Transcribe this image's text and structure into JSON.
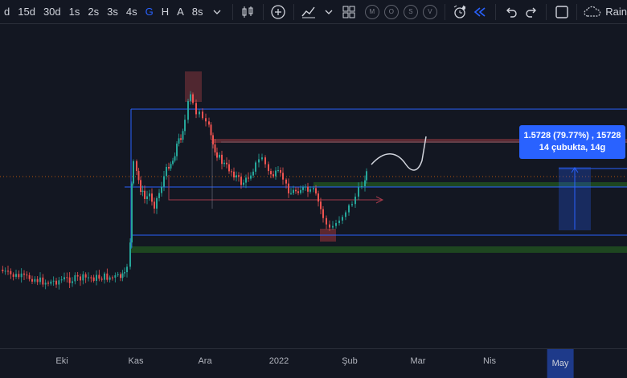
{
  "toolbar": {
    "intervals": [
      "d",
      "15d",
      "30d",
      "1s",
      "2s",
      "3s",
      "4s",
      "G",
      "H",
      "A",
      "8s"
    ],
    "active_interval": "G",
    "replay_circles": [
      "M",
      "O",
      "S",
      "V"
    ],
    "rain_label": "Rain"
  },
  "measure": {
    "line1": "1.5728 (79.77%) , 15728",
    "line2": "14 çubukta, 14g"
  },
  "xaxis": {
    "labels": [
      "Eki",
      "Kas",
      "Ara",
      "2022",
      "Şub",
      "Mar",
      "Nis",
      "May"
    ],
    "highlighted": "May"
  },
  "chart_data": {
    "type": "candlestick",
    "x_axis_labels": [
      "Eki",
      "Kas",
      "Ara",
      "2022",
      "Şub",
      "Mar",
      "Nis",
      "May"
    ],
    "measurement": "1.5728 (79.77%) , 15728 — 14 çubukta, 14g",
    "colors": {
      "up": "#26a69a",
      "down": "#ef5350",
      "background": "#131722",
      "line": "#2962ff"
    }
  }
}
